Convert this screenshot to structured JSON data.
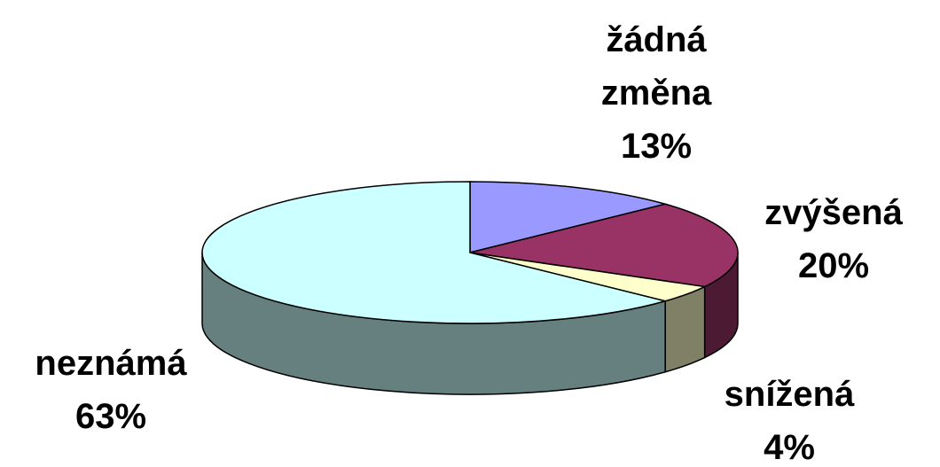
{
  "chart_data": {
    "type": "pie3d",
    "categories": [
      "žádná změna",
      "zvýšená",
      "snížená",
      "neznámá"
    ],
    "values": [
      13,
      20,
      4,
      63
    ],
    "value_labels": [
      "13%",
      "20%",
      "4%",
      "63%"
    ],
    "colors": [
      "#9999ff",
      "#993366",
      "#ffffcc",
      "#ccffff"
    ]
  }
}
